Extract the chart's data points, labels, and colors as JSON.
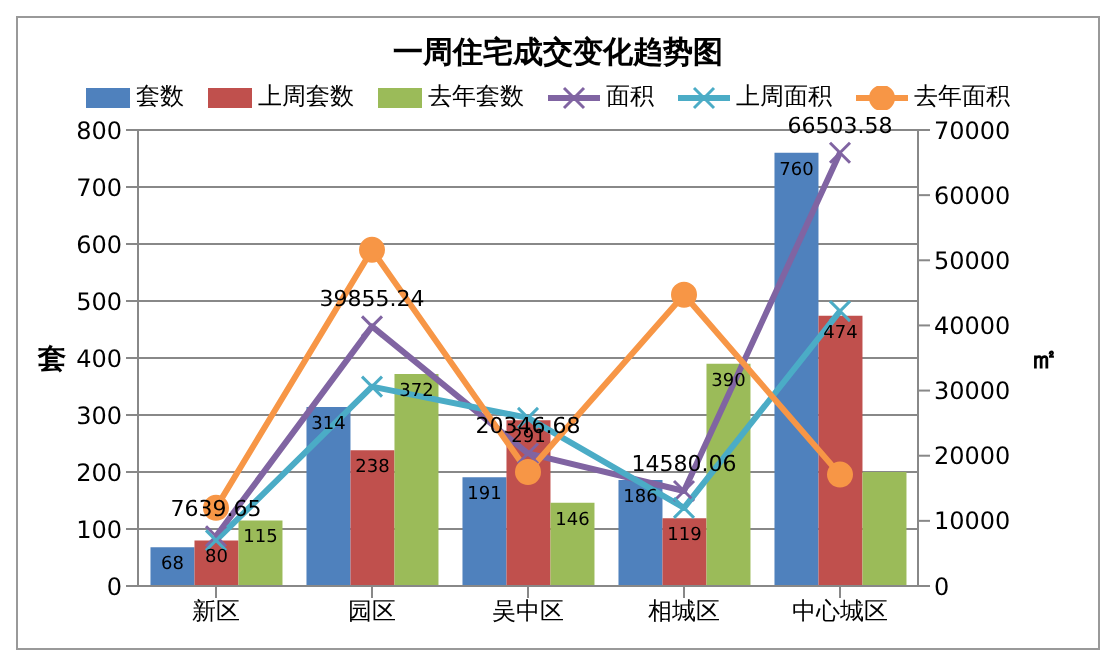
{
  "chart_data": {
    "type": "bar",
    "title": "一周住宅成交变化趋势图",
    "ylabel": "套",
    "y2label": "㎡",
    "categories": [
      "新区",
      "园区",
      "吴中区",
      "相城区",
      "中心城区"
    ],
    "series": [
      {
        "name": "套数",
        "color": "#4f81bd",
        "values": [
          68,
          314,
          191,
          186,
          760
        ],
        "value_labels": [
          "68",
          "314",
          "191",
          "186",
          "760"
        ]
      },
      {
        "name": "上周套数",
        "color": "#c0504d",
        "values": [
          80,
          238,
          291,
          119,
          474
        ],
        "value_labels": [
          "80",
          "238",
          "291",
          "119",
          "474"
        ]
      },
      {
        "name": "去年套数",
        "color": "#9bbb59",
        "values": [
          115,
          372,
          146,
          390,
          200
        ],
        "value_labels": [
          "115",
          "372",
          "146",
          "390",
          null
        ]
      },
      {
        "name": "面积",
        "type": "line",
        "axis": "y2",
        "marker": "cross",
        "color": "#8064a2",
        "values": [
          7639.65,
          39855.24,
          20346.68,
          14580.06,
          66503.58
        ],
        "value_labels": [
          "7639.65",
          "39855.24",
          "20346.68",
          "14580.06",
          "66503.58"
        ]
      },
      {
        "name": "上周面积",
        "type": "line",
        "axis": "y2",
        "marker": "cross",
        "color": "#4bacc6",
        "values": [
          7000,
          30600,
          25800,
          12000,
          42200
        ]
      },
      {
        "name": "去年面积",
        "type": "line",
        "axis": "y2",
        "marker": "circle",
        "color": "#f79646",
        "values": [
          12000,
          51600,
          17500,
          44700,
          17100
        ]
      }
    ],
    "ylim": [
      0,
      800
    ],
    "yticks": [
      0,
      100,
      200,
      300,
      400,
      500,
      600,
      700,
      800
    ],
    "y2lim": [
      0,
      70000
    ],
    "y2ticks": [
      0,
      10000,
      20000,
      30000,
      40000,
      50000,
      60000,
      70000
    ],
    "grid": "y",
    "legend": "top"
  }
}
